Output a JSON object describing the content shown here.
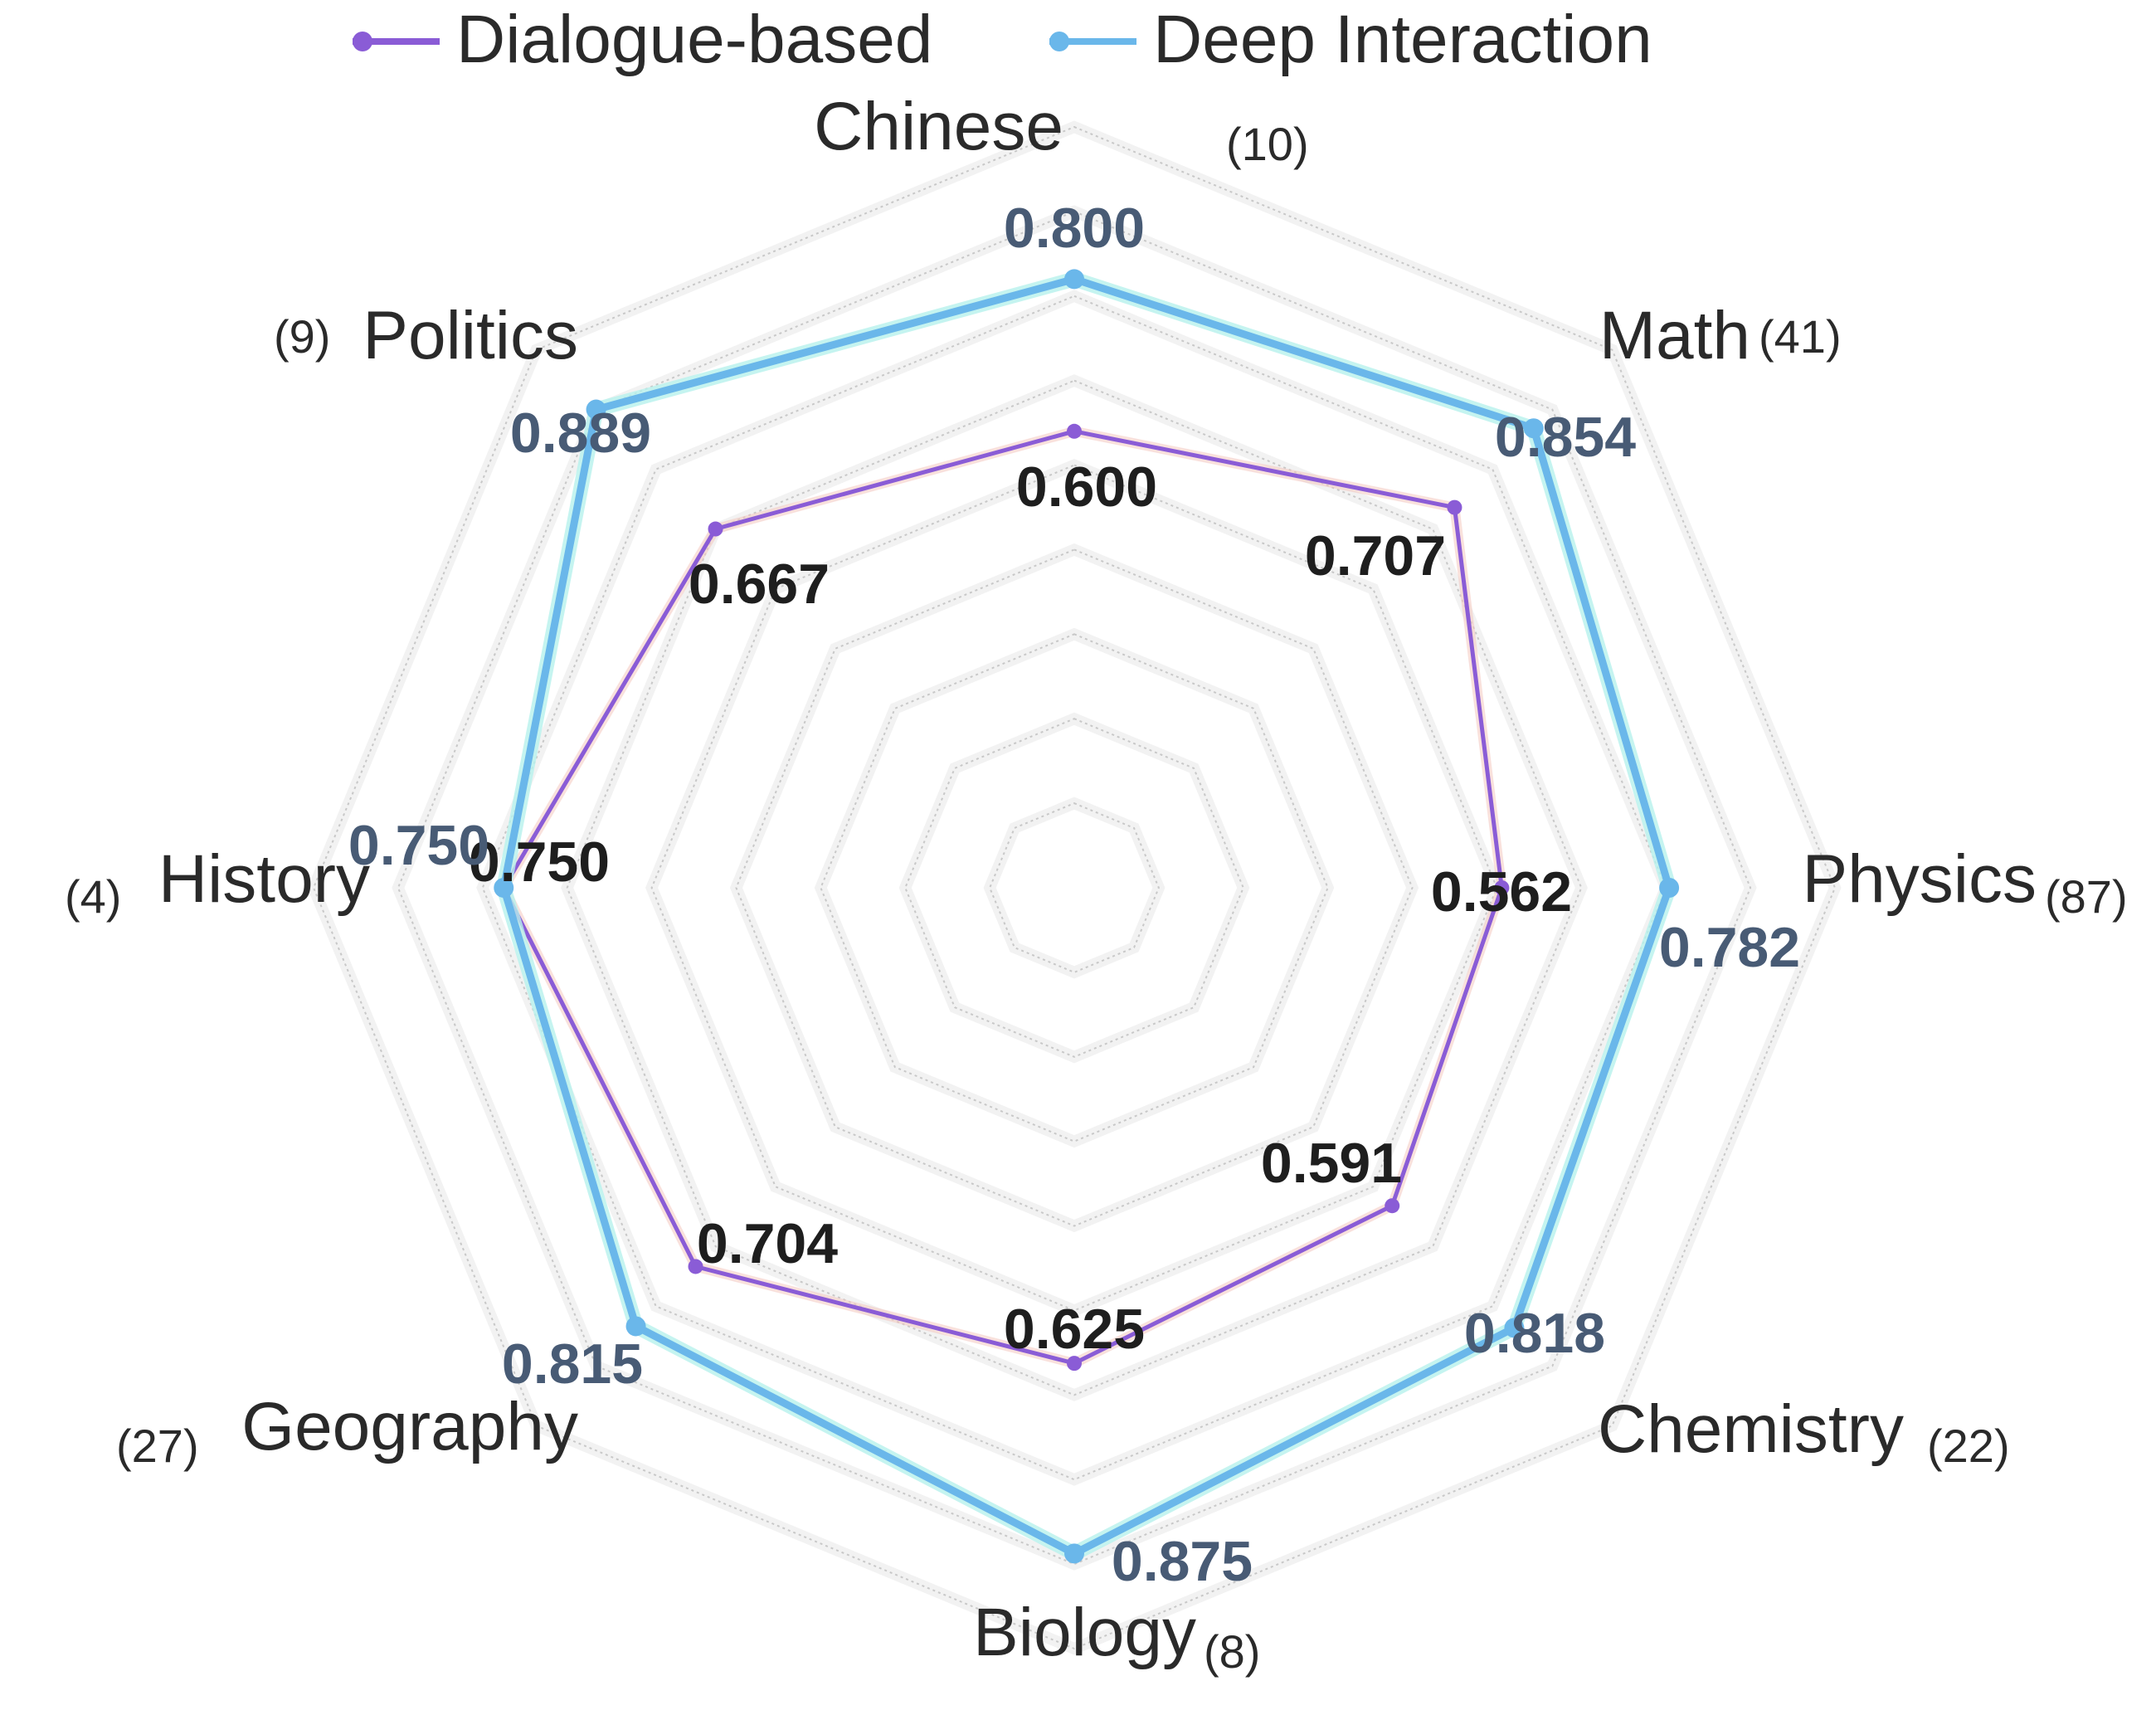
{
  "chart_data": {
    "type": "radar",
    "legend": {
      "placement": "top-center"
    },
    "axes": [
      {
        "name": "Chinese",
        "count": "(10)"
      },
      {
        "name": "Math",
        "count": "(41)"
      },
      {
        "name": "Physics",
        "count": "(87)"
      },
      {
        "name": "Chemistry",
        "count": "(22)"
      },
      {
        "name": "Biology",
        "count": "(8)"
      },
      {
        "name": "Geography",
        "count": "(27)"
      },
      {
        "name": "History",
        "count": "(4)"
      },
      {
        "name": "Politics",
        "count": "(9)"
      }
    ],
    "series": [
      {
        "name": "Dialogue-based",
        "color": "#8a5cd6",
        "values": [
          0.6,
          0.707,
          0.562,
          0.591,
          0.625,
          0.704,
          0.75,
          0.667
        ],
        "labels": [
          "0.600",
          "0.707",
          "0.562",
          "0.591",
          "0.625",
          "0.704",
          "0.750",
          "0.667"
        ]
      },
      {
        "name": "Deep Interaction",
        "color": "#6ab7ea",
        "values": [
          0.8,
          0.854,
          0.782,
          0.818,
          0.875,
          0.815,
          0.75,
          0.889
        ],
        "labels": [
          "0.800",
          "0.854",
          "0.782",
          "0.818",
          "0.875",
          "0.815",
          "0.750",
          "0.889"
        ]
      }
    ],
    "grid": true,
    "grid_levels": 9,
    "r_max": 1.0
  }
}
